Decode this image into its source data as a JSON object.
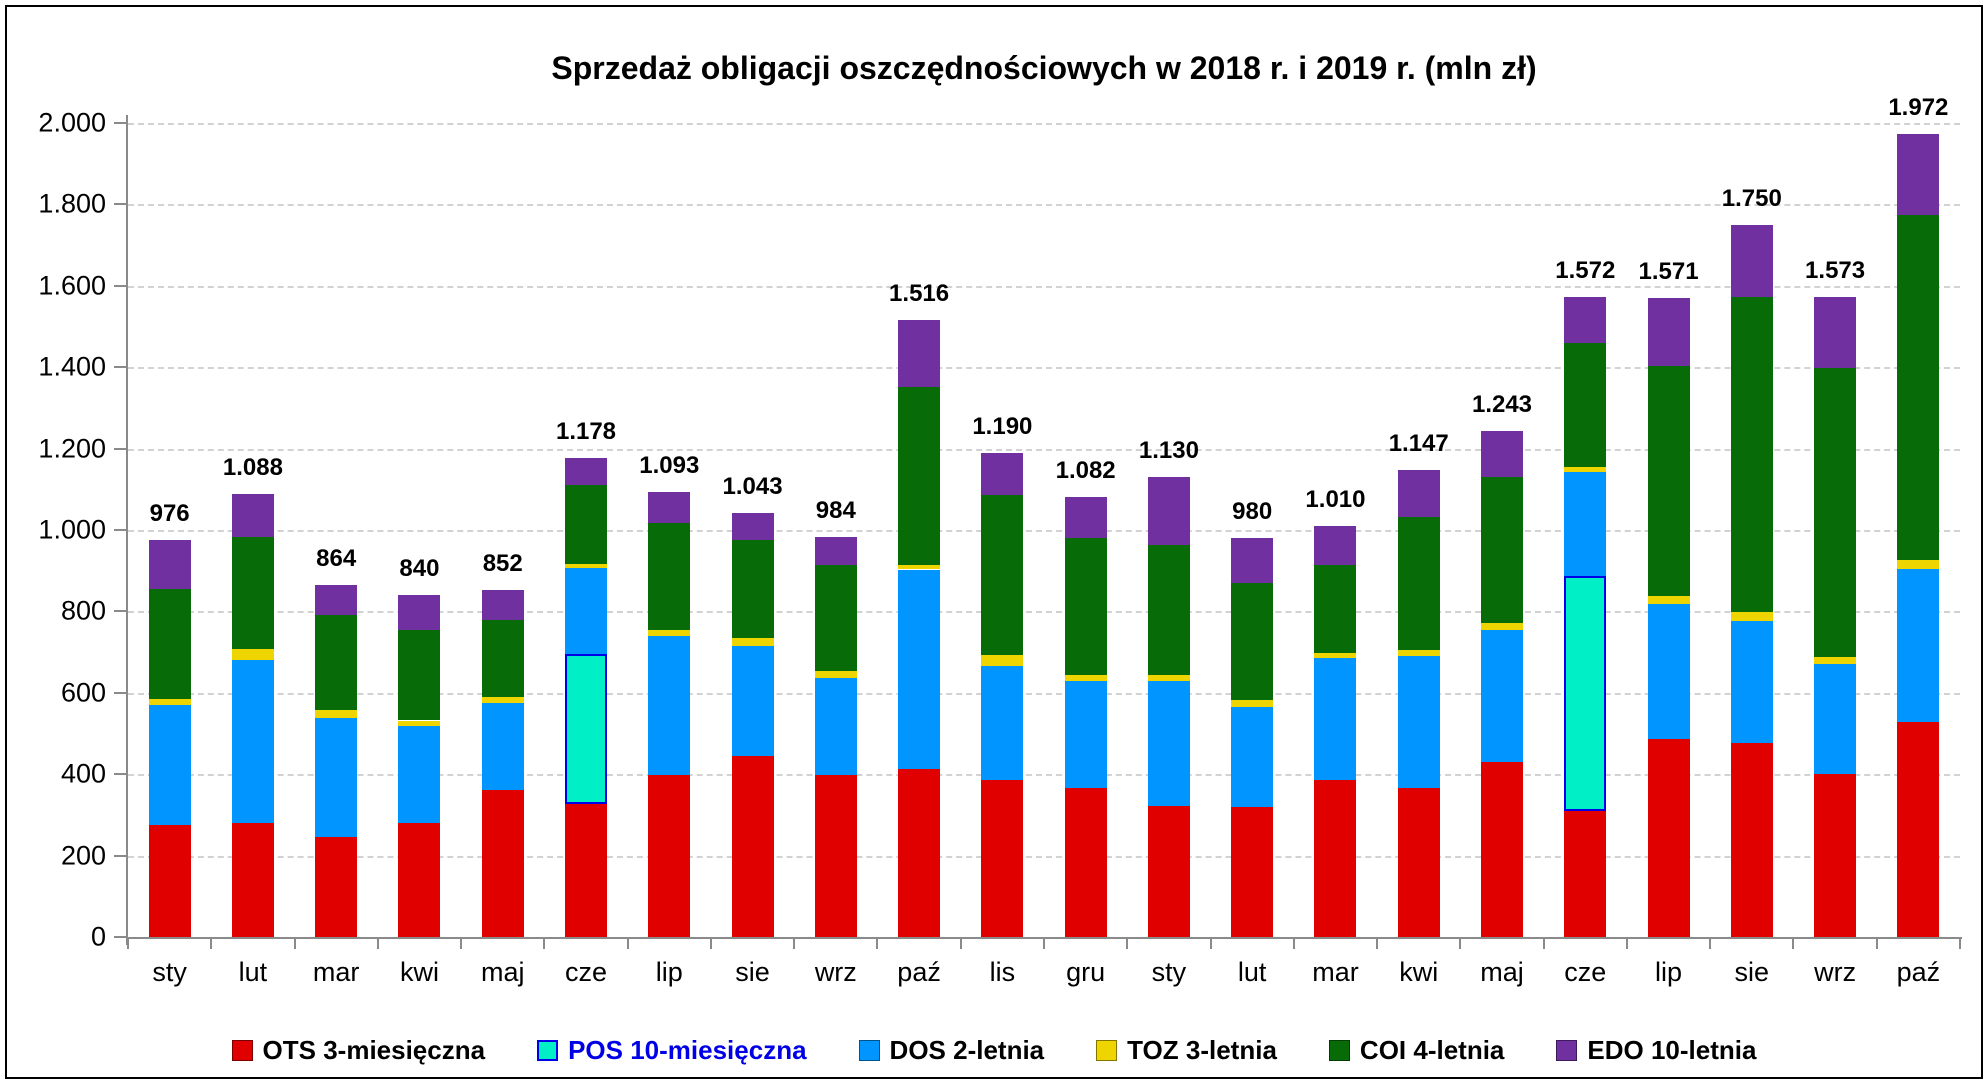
{
  "title": "Sprzedaż obligacji oszczędnościowych w 2018 r. i 2019 r. (mln zł)",
  "y_axis": {
    "ticks": [
      "2.000",
      "1.800",
      "1.600",
      "1.400",
      "1.200",
      "1.000",
      "800",
      "600",
      "400",
      "200",
      "0"
    ],
    "max": 2000
  },
  "chart_data": {
    "type": "bar",
    "stacked": true,
    "grid": true,
    "legend_position": "bottom",
    "ylim": [
      0,
      2000
    ],
    "xlabel": "",
    "ylabel": "",
    "categories": [
      "sty",
      "lut",
      "mar",
      "kwi",
      "maj",
      "cze",
      "lip",
      "sie",
      "wrz",
      "paź",
      "lis",
      "gru",
      "sty",
      "lut",
      "mar",
      "kwi",
      "maj",
      "cze",
      "lip",
      "sie",
      "wrz",
      "paź"
    ],
    "series": [
      {
        "name": "OTS 3-miesięczna",
        "color": "#E00000",
        "label_color": "#000000",
        "values": [
          276,
          279,
          246,
          281,
          362,
          327,
          397,
          444,
          397,
          413,
          385,
          365,
          323,
          320,
          387,
          366,
          431,
          310,
          487,
          476,
          400,
          528
        ]
      },
      {
        "name": "POS 10-miesięczna",
        "color": "#00EFC6",
        "border_color": "#0000E6",
        "label_color": "#0000E6",
        "values": [
          0,
          0,
          0,
          0,
          0,
          368,
          0,
          0,
          0,
          0,
          0,
          0,
          0,
          0,
          0,
          0,
          0,
          576,
          0,
          0,
          0,
          0
        ]
      },
      {
        "name": "DOS 2-letnia",
        "color": "#0095FF",
        "label_color": "#000000",
        "values": [
          293,
          402,
          293,
          237,
          212,
          211,
          342,
          270,
          239,
          490,
          282,
          264,
          306,
          246,
          298,
          325,
          323,
          256,
          332,
          301,
          271,
          376
        ]
      },
      {
        "name": "TOZ 3-letnia",
        "color": "#EFD500",
        "label_color": "#000000",
        "values": [
          17,
          26,
          18,
          14,
          15,
          11,
          16,
          21,
          18,
          12,
          26,
          14,
          15,
          16,
          14,
          13,
          17,
          14,
          19,
          21,
          17,
          22
        ]
      },
      {
        "name": "COI 4-letnia",
        "color": "#076C07",
        "label_color": "#000000",
        "values": [
          269,
          277,
          235,
          223,
          190,
          193,
          262,
          240,
          260,
          436,
          394,
          337,
          320,
          287,
          215,
          329,
          359,
          304,
          565,
          774,
          710,
          849
        ]
      },
      {
        "name": "EDO 10-letnia",
        "color": "#7030A0",
        "label_color": "#000000",
        "values": [
          121,
          104,
          72,
          85,
          73,
          68,
          76,
          68,
          70,
          165,
          103,
          102,
          166,
          111,
          96,
          114,
          113,
          112,
          168,
          178,
          175,
          197
        ]
      }
    ],
    "totals": [
      976,
      1088,
      864,
      840,
      852,
      1178,
      1093,
      1043,
      984,
      1516,
      1190,
      1082,
      1130,
      980,
      1010,
      1147,
      1243,
      1572,
      1571,
      1750,
      1573,
      1972
    ],
    "totals_formatted": [
      "976",
      "1.088",
      "864",
      "840",
      "852",
      "1.178",
      "1.093",
      "1.043",
      "984",
      "1.516",
      "1.190",
      "1.082",
      "1.130",
      "980",
      "1.010",
      "1.147",
      "1.243",
      "1.572",
      "1.571",
      "1.750",
      "1.573",
      "1.972"
    ]
  }
}
